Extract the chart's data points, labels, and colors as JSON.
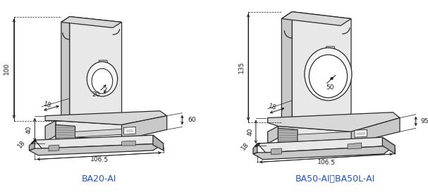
{
  "bg_color": "#ffffff",
  "line_color": "#2a2a2a",
  "dim_color": "#1a1a1a",
  "label_color": "#2255cc",
  "title1": "BA20-AI",
  "title2": "BA50-AI、BA50L-AI",
  "title_fontsize": 9,
  "dim_fontsize": 6.5,
  "lw_main": 0.9,
  "lw_dim": 0.7,
  "face_front": "#e8e8e8",
  "face_side": "#c8c8c8",
  "face_top": "#d8d8d8",
  "face_dark": "#b0b0b0",
  "face_white": "#f5f5f5"
}
